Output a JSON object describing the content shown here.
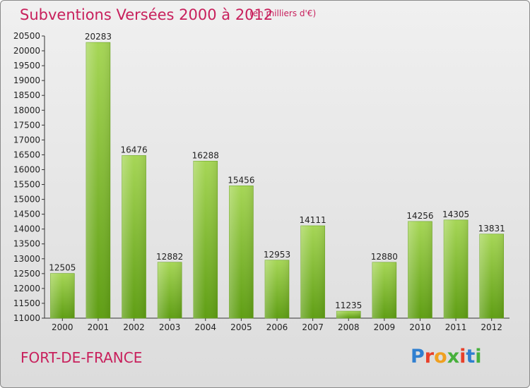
{
  "header": {
    "title": "Subventions Versées 2000 à 2012",
    "subtitle": "(en milliers d'€)"
  },
  "footer": {
    "city": "FORT-DE-FRANCE",
    "logo": "Proxiti"
  },
  "colors": {
    "title": "#c8205c",
    "bar_light": "#a6d656",
    "bar_dark": "#5f9e14"
  },
  "chart_data": {
    "type": "bar",
    "categories": [
      "2000",
      "2001",
      "2002",
      "2003",
      "2004",
      "2005",
      "2006",
      "2007",
      "2008",
      "2009",
      "2010",
      "2011",
      "2012"
    ],
    "values": [
      12505,
      20283,
      16476,
      12882,
      16288,
      15456,
      12953,
      14111,
      11235,
      12880,
      14256,
      14305,
      13831
    ],
    "ylim": [
      11000,
      20500
    ],
    "yticks": [
      11000,
      11500,
      12000,
      12500,
      13000,
      13500,
      14000,
      14500,
      15000,
      15500,
      16000,
      16500,
      17000,
      17500,
      18000,
      18500,
      19000,
      19500,
      20000,
      20500
    ],
    "grid": false,
    "data_labels": true
  }
}
